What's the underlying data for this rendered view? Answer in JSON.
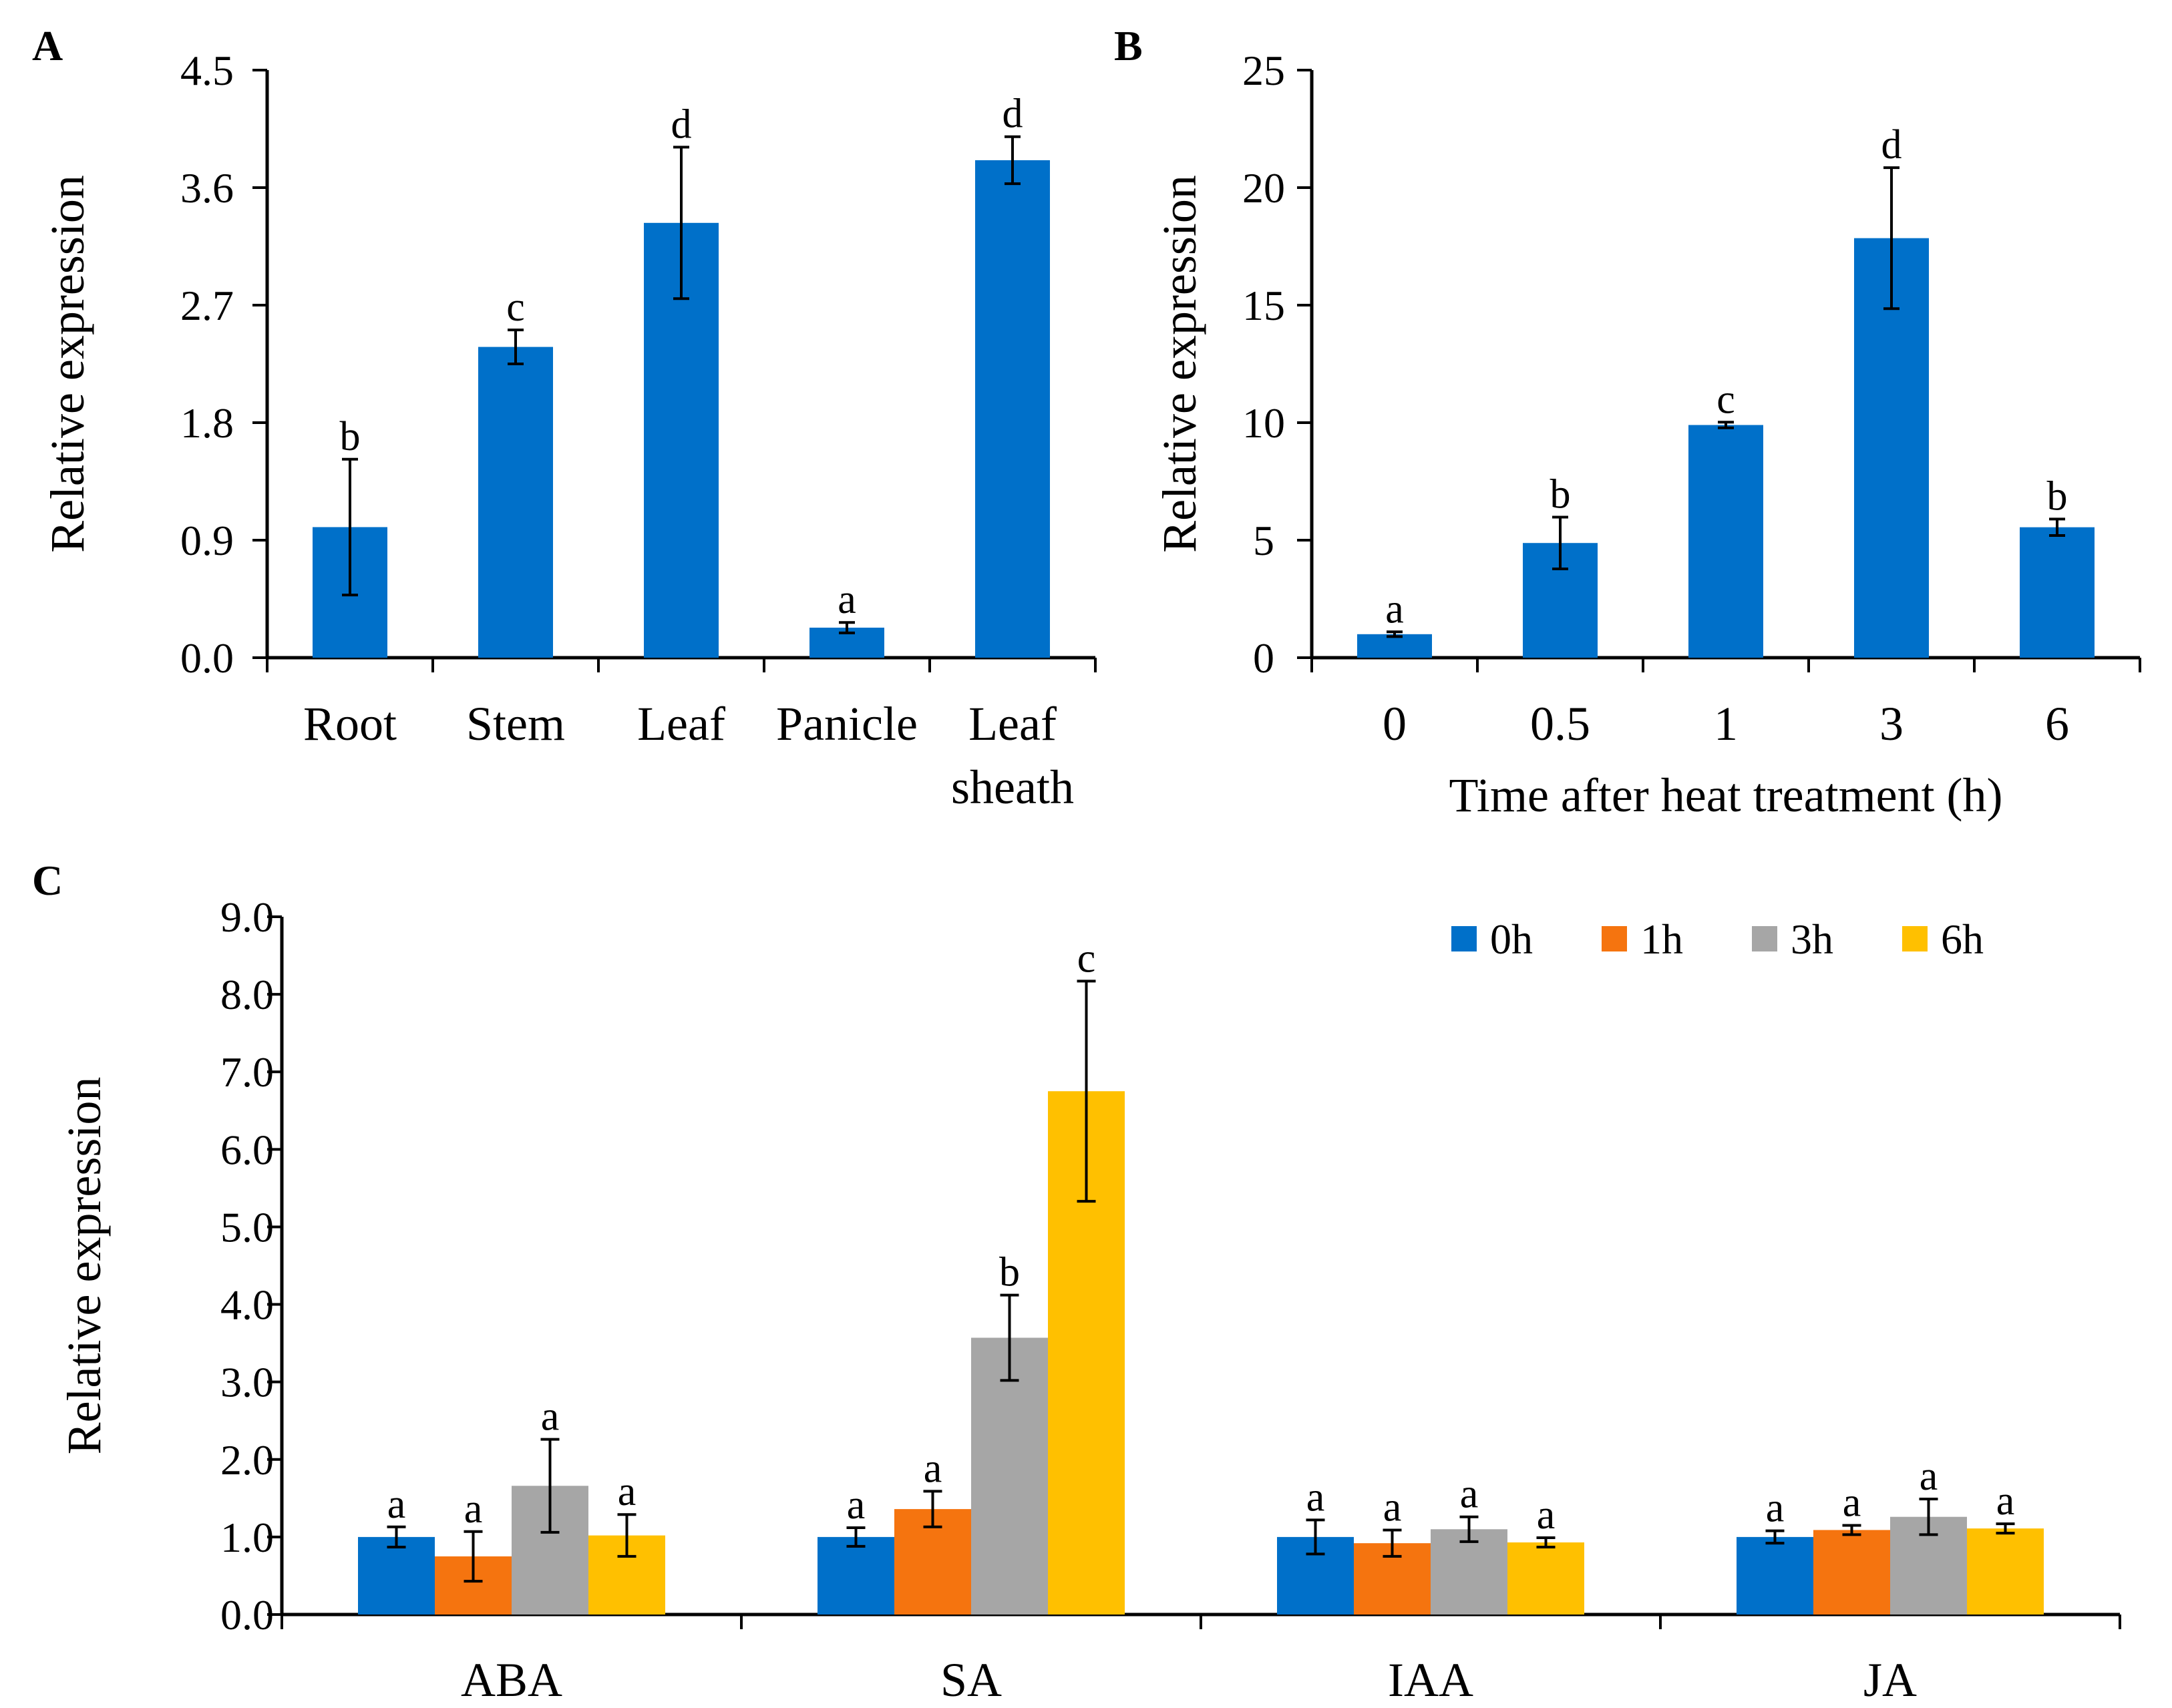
{
  "chart_data": [
    {
      "panel": "A",
      "type": "bar",
      "title": "",
      "xlabel": "",
      "ylabel": "Relative expression",
      "ylim": [
        0,
        4.5
      ],
      "yticks": [
        "0.0",
        "0.9",
        "1.8",
        "2.7",
        "3.6",
        "4.5"
      ],
      "categories": [
        [
          "Root"
        ],
        [
          "Stem"
        ],
        [
          "Leaf"
        ],
        [
          "Panicle"
        ],
        [
          "Leaf",
          "sheath"
        ]
      ],
      "series": [
        {
          "name": "",
          "color": "#0070C9",
          "values": [
            1.0,
            2.38,
            3.33,
            0.23,
            3.81
          ],
          "errors": [
            0.52,
            0.13,
            0.58,
            0.04,
            0.18
          ],
          "letters": [
            "b",
            "c",
            "d",
            "a",
            "d"
          ]
        }
      ]
    },
    {
      "panel": "B",
      "type": "bar",
      "title": "",
      "xlabel": "Time after heat treatment (h)",
      "ylabel": "Relative expression",
      "ylim": [
        0,
        25
      ],
      "yticks": [
        "0",
        "5",
        "10",
        "15",
        "20",
        "25"
      ],
      "categories": [
        [
          "0"
        ],
        [
          "0.5"
        ],
        [
          "1"
        ],
        [
          "3"
        ],
        [
          "6"
        ]
      ],
      "series": [
        {
          "name": "",
          "color": "#0070C9",
          "values": [
            1.0,
            4.88,
            9.9,
            17.85,
            5.55
          ],
          "errors": [
            0.1,
            1.1,
            0.12,
            3.0,
            0.35
          ],
          "letters": [
            "a",
            "b",
            "c",
            "d",
            "b"
          ]
        }
      ]
    },
    {
      "panel": "C",
      "type": "bar",
      "title": "",
      "xlabel": "",
      "ylabel": "Relative expression",
      "ylim": [
        0,
        9
      ],
      "yticks": [
        "0.0",
        "1.0",
        "2.0",
        "3.0",
        "4.0",
        "5.0",
        "6.0",
        "7.0",
        "8.0",
        "9.0"
      ],
      "categories": [
        [
          "ABA"
        ],
        [
          "SA"
        ],
        [
          "IAA"
        ],
        [
          "JA"
        ]
      ],
      "legend_position": "top-right",
      "series": [
        {
          "name": "0h",
          "color": "#0070C9",
          "values": [
            1.0,
            1.0,
            1.0,
            1.0
          ],
          "errors": [
            0.13,
            0.12,
            0.22,
            0.08
          ],
          "letters": [
            "a",
            "a",
            "a",
            "a"
          ]
        },
        {
          "name": "1h",
          "color": "#F5740F",
          "values": [
            0.75,
            1.36,
            0.92,
            1.09
          ],
          "errors": [
            0.32,
            0.23,
            0.17,
            0.06
          ],
          "letters": [
            "a",
            "a",
            "a",
            "a"
          ]
        },
        {
          "name": "3h",
          "color": "#A6A6A6",
          "values": [
            1.66,
            3.57,
            1.1,
            1.26
          ],
          "errors": [
            0.6,
            0.55,
            0.16,
            0.23
          ],
          "letters": [
            "a",
            "b",
            "a",
            "a"
          ]
        },
        {
          "name": "6h",
          "color": "#FFC000",
          "values": [
            1.02,
            6.75,
            0.93,
            1.11
          ],
          "errors": [
            0.27,
            1.42,
            0.06,
            0.06
          ],
          "letters": [
            "a",
            "c",
            "a",
            "a"
          ]
        }
      ]
    }
  ]
}
